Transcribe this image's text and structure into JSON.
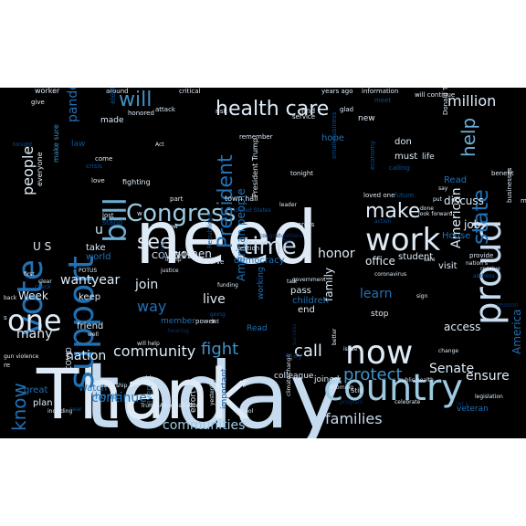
{
  "palette": {
    "background": "#000000",
    "page": "#ffffff",
    "pale": "#deebf7",
    "light": "#c6dbef",
    "sky": "#9ecae1",
    "mid": "#6baed6",
    "blue": "#4292c6",
    "deep": "#2171b5",
    "dark": "#08519c",
    "navy": "#08306b"
  },
  "words": [
    {
      "text": "today",
      "size": 100,
      "color": "light",
      "rotate": 0
    },
    {
      "text": "need",
      "size": 80,
      "color": "pale",
      "rotate": 0
    },
    {
      "text": "Thank",
      "size": 76,
      "color": "pale",
      "rotate": 0
    },
    {
      "text": "work",
      "size": 34,
      "color": "pale",
      "rotate": 0
    },
    {
      "text": "country",
      "size": 40,
      "color": "sky",
      "rotate": 0
    },
    {
      "text": "now",
      "size": 36,
      "color": "pale",
      "rotate": 0
    },
    {
      "text": "proud",
      "size": 40,
      "color": "light",
      "rotate": -90
    },
    {
      "text": "support",
      "size": 38,
      "color": "deep",
      "rotate": -90
    },
    {
      "text": "vote",
      "size": 38,
      "color": "deep",
      "rotate": -90
    },
    {
      "text": "one",
      "size": 32,
      "color": "pale",
      "rotate": 0
    },
    {
      "text": "health care",
      "size": 22,
      "color": "pale",
      "rotate": 0
    },
    {
      "text": "Congress",
      "size": 26,
      "color": "sky",
      "rotate": 0
    },
    {
      "text": "time",
      "size": 26,
      "color": "light",
      "rotate": 0
    },
    {
      "text": "see",
      "size": 22,
      "color": "pale",
      "rotate": 0
    },
    {
      "text": "make",
      "size": 22,
      "color": "pale",
      "rotate": 0
    },
    {
      "text": "bill",
      "size": 34,
      "color": "mid",
      "rotate": -90
    },
    {
      "text": "will",
      "size": 22,
      "color": "blue",
      "rotate": 0
    },
    {
      "text": "million",
      "size": 16,
      "color": "pale",
      "rotate": 0
    },
    {
      "text": "people",
      "size": 16,
      "color": "pale",
      "rotate": -90
    },
    {
      "text": "President",
      "size": 22,
      "color": "deep",
      "rotate": -90
    },
    {
      "text": "help",
      "size": 20,
      "color": "mid",
      "rotate": -90
    },
    {
      "text": "state",
      "size": 24,
      "color": "deep",
      "rotate": -90
    },
    {
      "text": "know",
      "size": 20,
      "color": "deep",
      "rotate": -90
    },
    {
      "text": "community",
      "size": 16,
      "color": "pale",
      "rotate": 0
    },
    {
      "text": "fight",
      "size": 18,
      "color": "blue",
      "rotate": 0
    },
    {
      "text": "call",
      "size": 18,
      "color": "pale",
      "rotate": 0
    },
    {
      "text": "protect",
      "size": 18,
      "color": "blue",
      "rotate": 0
    },
    {
      "text": "families",
      "size": 16,
      "color": "light",
      "rotate": 0
    },
    {
      "text": "communities",
      "size": 14,
      "color": "sky",
      "rotate": 0
    },
    {
      "text": "continue",
      "size": 14,
      "color": "deep",
      "rotate": 0
    },
    {
      "text": "ensure",
      "size": 14,
      "color": "pale",
      "rotate": 0
    },
    {
      "text": "Senate",
      "size": 14,
      "color": "pale",
      "rotate": 0
    },
    {
      "text": "American",
      "size": 14,
      "color": "pale",
      "rotate": -90
    },
    {
      "text": "America",
      "size": 12,
      "color": "deep",
      "rotate": -90
    },
    {
      "text": "American people",
      "size": 12,
      "color": "deep",
      "rotate": -90
    },
    {
      "text": "honor",
      "size": 14,
      "color": "pale",
      "rotate": 0
    },
    {
      "text": "women",
      "size": 12,
      "color": "pale",
      "rotate": 0
    },
    {
      "text": "family",
      "size": 12,
      "color": "pale",
      "rotate": -90
    },
    {
      "text": "pandemic",
      "size": 14,
      "color": "deep",
      "rotate": -90
    },
    {
      "text": "live",
      "size": 14,
      "color": "pale",
      "rotate": 0
    },
    {
      "text": "way",
      "size": 16,
      "color": "deep",
      "rotate": 0
    },
    {
      "text": "join",
      "size": 14,
      "color": "pale",
      "rotate": 0
    },
    {
      "text": "want",
      "size": 14,
      "color": "pale",
      "rotate": 0
    },
    {
      "text": "year",
      "size": 14,
      "color": "pale",
      "rotate": 0
    },
    {
      "text": "many",
      "size": 14,
      "color": "pale",
      "rotate": 0
    },
    {
      "text": "nation",
      "size": 14,
      "color": "pale",
      "rotate": 0
    },
    {
      "text": "learn",
      "size": 14,
      "color": "deep",
      "rotate": 0
    },
    {
      "text": "office",
      "size": 12,
      "color": "pale",
      "rotate": 0
    },
    {
      "text": "discuss",
      "size": 12,
      "color": "pale",
      "rotate": 0
    },
    {
      "text": "job",
      "size": 12,
      "color": "pale",
      "rotate": 0
    },
    {
      "text": "access",
      "size": 12,
      "color": "pale",
      "rotate": 0
    },
    {
      "text": "u",
      "size": 14,
      "color": "pale",
      "rotate": 0
    },
    {
      "text": "U S",
      "size": 12,
      "color": "pale",
      "rotate": 0
    },
    {
      "text": "Week",
      "size": 12,
      "color": "pale",
      "rotate": 0
    },
    {
      "text": "keep",
      "size": 10,
      "color": "pale",
      "rotate": 0
    },
    {
      "text": "take",
      "size": 10,
      "color": "pale",
      "rotate": 0
    },
    {
      "text": "world",
      "size": 10,
      "color": "deep",
      "rotate": 0
    },
    {
      "text": "friend",
      "size": 10,
      "color": "pale",
      "rotate": 0
    },
    {
      "text": "member",
      "size": 9,
      "color": "deep",
      "rotate": 0
    },
    {
      "text": "COVID19",
      "size": 10,
      "color": "pale",
      "rotate": 0
    },
    {
      "text": "democracy",
      "size": 10,
      "color": "deep",
      "rotate": 0
    },
    {
      "text": "children",
      "size": 10,
      "color": "deep",
      "rotate": 0
    },
    {
      "text": "pass",
      "size": 10,
      "color": "pale",
      "rotate": 0
    },
    {
      "text": "visit",
      "size": 10,
      "color": "pale",
      "rotate": 0
    },
    {
      "text": "student",
      "size": 10,
      "color": "pale",
      "rotate": 0
    },
    {
      "text": "House",
      "size": 10,
      "color": "deep",
      "rotate": 0
    },
    {
      "text": "don",
      "size": 10,
      "color": "pale",
      "rotate": 0
    },
    {
      "text": "must",
      "size": 10,
      "color": "pale",
      "rotate": 0
    },
    {
      "text": "Read",
      "size": 10,
      "color": "deep",
      "rotate": 0
    },
    {
      "text": "new",
      "size": 9,
      "color": "pale",
      "rotate": 0
    },
    {
      "text": "hope",
      "size": 10,
      "color": "deep",
      "rotate": 0
    },
    {
      "text": "life",
      "size": 9,
      "color": "pale",
      "rotate": 0
    },
    {
      "text": "Read",
      "size": 9,
      "color": "deep",
      "rotate": 0
    },
    {
      "text": "end",
      "size": 10,
      "color": "pale",
      "rotate": 0
    },
    {
      "text": "stop",
      "size": 9,
      "color": "pale",
      "rotate": 0
    },
    {
      "text": "joined",
      "size": 9,
      "color": "pale",
      "rotate": 0
    },
    {
      "text": "home",
      "size": 10,
      "color": "deep",
      "rotate": 0
    },
    {
      "text": "Watch",
      "size": 10,
      "color": "deep",
      "rotate": 0
    },
    {
      "text": "plan",
      "size": 10,
      "color": "pale",
      "rotate": 0
    },
    {
      "text": "great",
      "size": 10,
      "color": "deep",
      "rotate": 0
    },
    {
      "text": "veteran",
      "size": 9,
      "color": "deep",
      "rotate": 0
    },
    {
      "text": "colleague",
      "size": 9,
      "color": "pale",
      "rotate": 0
    },
    {
      "text": "working",
      "size": 9,
      "color": "deep",
      "rotate": -90
    },
    {
      "text": "even",
      "size": 9,
      "color": "deep",
      "rotate": -90
    },
    {
      "text": "important",
      "size": 9,
      "color": "dark",
      "rotate": -90
    },
    {
      "text": "effort",
      "size": 9,
      "color": "pale",
      "rotate": -90
    },
    {
      "text": "COVID",
      "size": 8,
      "color": "pale",
      "rotate": -90
    },
    {
      "text": "made",
      "size": 9,
      "color": "pale",
      "rotate": 0
    },
    {
      "text": "law",
      "size": 9,
      "color": "dark",
      "rotate": 0
    },
    {
      "text": "fighting",
      "size": 8,
      "color": "pale",
      "rotate": 0
    },
    {
      "text": "everyone",
      "size": 8,
      "color": "pale",
      "rotate": -90
    },
    {
      "text": "make sure",
      "size": 8,
      "color": "blue",
      "rotate": -90
    },
    {
      "text": "give",
      "size": 7,
      "color": "pale",
      "rotate": 0
    },
    {
      "text": "worker",
      "size": 8,
      "color": "pale",
      "rotate": 0
    },
    {
      "text": "around",
      "size": 7,
      "color": "pale",
      "rotate": 0
    },
    {
      "text": "critical",
      "size": 7,
      "color": "pale",
      "rotate": 0
    },
    {
      "text": "years ago",
      "size": 7,
      "color": "pale",
      "rotate": 0
    },
    {
      "text": "information",
      "size": 7,
      "color": "pale",
      "rotate": 0
    },
    {
      "text": "will continue",
      "size": 7,
      "color": "pale",
      "rotate": 0
    },
    {
      "text": "meet",
      "size": 7,
      "color": "dark",
      "rotate": 0
    },
    {
      "text": "glad",
      "size": 7,
      "color": "pale",
      "rotate": 0
    },
    {
      "text": "service",
      "size": 7,
      "color": "pale",
      "rotate": 0
    },
    {
      "text": "find",
      "size": 8,
      "color": "pale",
      "rotate": 0
    },
    {
      "text": "risk",
      "size": 7,
      "color": "pale",
      "rotate": 0
    },
    {
      "text": "attack",
      "size": 7,
      "color": "pale",
      "rotate": 0
    },
    {
      "text": "honored",
      "size": 7,
      "color": "pale",
      "rotate": 0
    },
    {
      "text": "remember",
      "size": 7,
      "color": "pale",
      "rotate": 0
    },
    {
      "text": "tonight",
      "size": 7,
      "color": "pale",
      "rotate": 0
    },
    {
      "text": "economy",
      "size": 7,
      "color": "dark",
      "rotate": -90
    },
    {
      "text": "Donald Trump",
      "size": 7,
      "color": "pale",
      "rotate": -90
    },
    {
      "text": "calling",
      "size": 7,
      "color": "dark",
      "rotate": 0
    },
    {
      "text": "benefit",
      "size": 7,
      "color": "pale",
      "rotate": 0
    },
    {
      "text": "making",
      "size": 7,
      "color": "pale",
      "rotate": 0
    },
    {
      "text": "businesses",
      "size": 7,
      "color": "pale",
      "rotate": -90
    },
    {
      "text": "small business",
      "size": 7,
      "color": "dark",
      "rotate": -90
    },
    {
      "text": "crisis",
      "size": 7,
      "color": "dark",
      "rotate": 0
    },
    {
      "text": "come",
      "size": 7,
      "color": "pale",
      "rotate": 0
    },
    {
      "text": "love",
      "size": 7,
      "color": "pale",
      "rotate": 0
    },
    {
      "text": "President Trump",
      "size": 8,
      "color": "pale",
      "rotate": -90
    },
    {
      "text": "leader",
      "size": 6,
      "color": "pale",
      "rotate": 0
    },
    {
      "text": "part",
      "size": 7,
      "color": "pale",
      "rotate": 0
    },
    {
      "text": "town hall",
      "size": 8,
      "color": "pale",
      "rotate": 0
    },
    {
      "text": "United States",
      "size": 6,
      "color": "dark",
      "rotate": 0
    },
    {
      "text": "lost",
      "size": 7,
      "color": "pale",
      "rotate": 0
    },
    {
      "text": "stand",
      "size": 8,
      "color": "dark",
      "rotate": 0
    },
    {
      "text": "tomorrow",
      "size": 6,
      "color": "pale",
      "rotate": 0
    },
    {
      "text": "across",
      "size": 7,
      "color": "pale",
      "rotate": 0
    },
    {
      "text": "loved one",
      "size": 7,
      "color": "pale",
      "rotate": 0
    },
    {
      "text": "future",
      "size": 7,
      "color": "dark",
      "rotate": 0
    },
    {
      "text": "action",
      "size": 6,
      "color": "dark",
      "rotate": 0
    },
    {
      "text": "look forward",
      "size": 6,
      "color": "pale",
      "rotate": 0
    },
    {
      "text": "done",
      "size": 6,
      "color": "pale",
      "rotate": 0
    },
    {
      "text": "nation s",
      "size": 6,
      "color": "pale",
      "rotate": 0
    },
    {
      "text": "provide",
      "size": 7,
      "color": "pale",
      "rotate": 0
    },
    {
      "text": "address",
      "size": 6,
      "color": "dark",
      "rotate": 0
    },
    {
      "text": "receive",
      "size": 6,
      "color": "pale",
      "rotate": 0
    },
    {
      "text": "coronavirus",
      "size": 6,
      "color": "pale",
      "rotate": 0
    },
    {
      "text": "Republican",
      "size": 7,
      "color": "dark",
      "rotate": -90
    },
    {
      "text": "question",
      "size": 7,
      "color": "pale",
      "rotate": 0
    },
    {
      "text": "Trump",
      "size": 6,
      "color": "pale",
      "rotate": 0
    },
    {
      "text": "serve",
      "size": 7,
      "color": "pale",
      "rotate": 0
    },
    {
      "text": "justice",
      "size": 6,
      "color": "pale",
      "rotate": 0
    },
    {
      "text": "going",
      "size": 6,
      "color": "dark",
      "rotate": 0
    },
    {
      "text": "power",
      "size": 7,
      "color": "pale",
      "rotate": 0
    },
    {
      "text": "government",
      "size": 6,
      "color": "pale",
      "rotate": 0
    },
    {
      "text": "safe",
      "size": 6,
      "color": "pale",
      "rotate": 0
    },
    {
      "text": "POTUS",
      "size": 6,
      "color": "pale",
      "rotate": 0
    },
    {
      "text": "first",
      "size": 6,
      "color": "pale",
      "rotate": 0
    },
    {
      "text": "clear",
      "size": 6,
      "color": "pale",
      "rotate": 0
    },
    {
      "text": "check",
      "size": 6,
      "color": "dark",
      "rotate": 0
    },
    {
      "text": "funding",
      "size": 6,
      "color": "pale",
      "rotate": 0
    },
    {
      "text": "talk",
      "size": 6,
      "color": "pale",
      "rotate": 0
    },
    {
      "text": "let",
      "size": 6,
      "color": "pale",
      "rotate": 0
    },
    {
      "text": "well",
      "size": 6,
      "color": "pale",
      "rotate": 0
    },
    {
      "text": "will help",
      "size": 6,
      "color": "pale",
      "rotate": 0
    },
    {
      "text": "gun violence",
      "size": 6,
      "color": "pale",
      "rotate": 0
    },
    {
      "text": "leadership",
      "size": 6,
      "color": "pale",
      "rotate": 0
    },
    {
      "text": "able",
      "size": 6,
      "color": "pale",
      "rotate": 0
    },
    {
      "text": "including",
      "size": 6,
      "color": "pale",
      "rotate": 0
    },
    {
      "text": "near",
      "size": 6,
      "color": "dark",
      "rotate": 0
    },
    {
      "text": "Trump Administration",
      "size": 6,
      "color": "pale",
      "rotate": 0
    },
    {
      "text": "school",
      "size": 6,
      "color": "pale",
      "rotate": 0
    },
    {
      "text": "yesterday",
      "size": 6,
      "color": "pale",
      "rotate": -90
    },
    {
      "text": "climate change",
      "size": 6,
      "color": "pale",
      "rotate": -90
    },
    {
      "text": "morning",
      "size": 6,
      "color": "pale",
      "rotate": 0
    },
    {
      "text": "issue",
      "size": 6,
      "color": "pale",
      "rotate": 0
    },
    {
      "text": "better",
      "size": 6,
      "color": "pale",
      "rotate": -90
    },
    {
      "text": "Still",
      "size": 7,
      "color": "pale",
      "rotate": 0
    },
    {
      "text": "celebrate",
      "size": 6,
      "color": "pale",
      "rotate": 0
    },
    {
      "text": "public health",
      "size": 6,
      "color": "pale",
      "rotate": 0
    },
    {
      "text": "legislation",
      "size": 6,
      "color": "pale",
      "rotate": 0
    },
    {
      "text": "change",
      "size": 6,
      "color": "pale",
      "rotate": 0
    },
    {
      "text": "election",
      "size": 8,
      "color": "dark",
      "rotate": -90
    },
    {
      "text": "Act",
      "size": 6,
      "color": "pale",
      "rotate": 0
    },
    {
      "text": "say",
      "size": 6,
      "color": "pale",
      "rotate": 0
    },
    {
      "text": "put",
      "size": 6,
      "color": "pale",
      "rotate": 0
    },
    {
      "text": "sign",
      "size": 6,
      "color": "pale",
      "rotate": 0
    },
    {
      "text": "back",
      "size": 6,
      "color": "pale",
      "rotate": 0
    },
    {
      "text": "re",
      "size": 7,
      "color": "pale",
      "rotate": 0
    },
    {
      "text": "s",
      "size": 7,
      "color": "pale",
      "rotate": 0
    },
    {
      "text": "w",
      "size": 7,
      "color": "pale",
      "rotate": 0
    },
    {
      "text": "tonight",
      "size": 6,
      "color": "dark",
      "rotate": 0
    },
    {
      "text": "history",
      "size": 6,
      "color": "navy",
      "rotate": -90
    },
    {
      "text": "congratulations",
      "size": 6,
      "color": "navy",
      "rotate": 0
    },
    {
      "text": "fair",
      "size": 6,
      "color": "navy",
      "rotate": 0
    },
    {
      "text": "hearing",
      "size": 6,
      "color": "navy",
      "rotate": 0
    },
    {
      "text": "may",
      "size": 9,
      "color": "navy",
      "rotate": 0
    },
    {
      "text": "reason",
      "size": 7,
      "color": "navy",
      "rotate": 0
    },
    {
      "text": "success",
      "size": 6,
      "color": "navy",
      "rotate": -90
    },
    {
      "text": "let s",
      "size": 6,
      "color": "navy",
      "rotate": 0
    },
    {
      "text": "program",
      "size": 6,
      "color": "navy",
      "rotate": 0
    },
    {
      "text": "rule",
      "size": 6,
      "color": "navy",
      "rotate": 0
    }
  ]
}
